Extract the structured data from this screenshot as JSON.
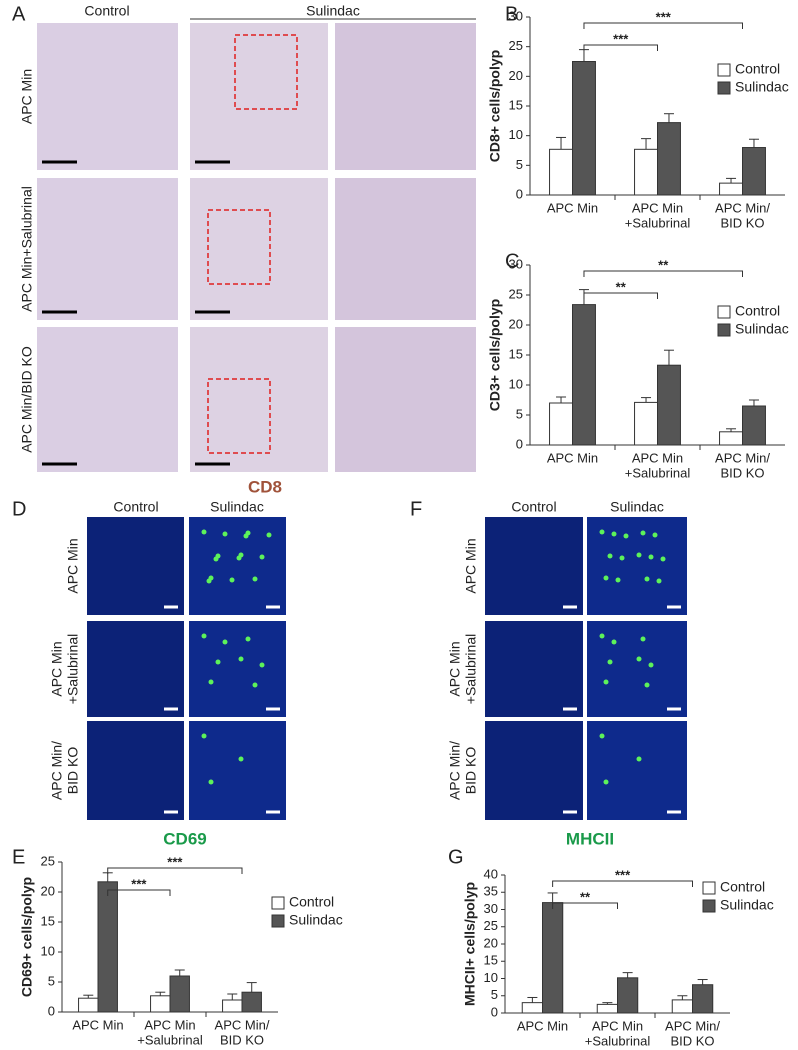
{
  "figure": {
    "A": {
      "label": "A",
      "columns": [
        "Control",
        "Sulindac"
      ],
      "rows": [
        [
          "APC Min"
        ],
        [
          "APC Min+Salubrinal"
        ],
        [
          "APC Min/BID KO"
        ]
      ],
      "stain": "CD8"
    },
    "D": {
      "label": "D",
      "columns": [
        "Control",
        "Sulindac"
      ],
      "rows": [
        [
          "APC Min"
        ],
        [
          "APC Min",
          "+Salubrinal"
        ],
        [
          "APC Min/",
          "BID KO"
        ]
      ],
      "stain": "CD69"
    },
    "F": {
      "label": "F",
      "columns": [
        "Control",
        "Sulindac"
      ],
      "rows": [
        [
          "APC Min"
        ],
        [
          "APC Min",
          "+Salubrinal"
        ],
        [
          "APC Min/",
          "BID KO"
        ]
      ],
      "stain": "MHCII"
    }
  },
  "chart_data": [
    {
      "type": "bar",
      "panel_label": "B",
      "y_label": "CD8+ cells/polyp",
      "categories": [
        [
          "APC Min"
        ],
        [
          "APC Min",
          "+Salubrinal"
        ],
        [
          "APC Min/",
          "BID KO"
        ]
      ],
      "series": [
        {
          "name": "Control",
          "color": "#ffffff",
          "values": [
            7.7,
            7.7,
            2
          ],
          "errors": [
            2,
            1.8,
            0.8
          ]
        },
        {
          "name": "Sulindac",
          "color": "#555555",
          "values": [
            22.5,
            12.2,
            8
          ],
          "errors": [
            2,
            1.5,
            1.4
          ]
        }
      ],
      "ylim": [
        0,
        30
      ],
      "yticks": [
        0,
        5,
        10,
        15,
        20,
        25,
        30
      ],
      "annotations": [
        "***",
        "***"
      ]
    },
    {
      "type": "bar",
      "panel_label": "C",
      "y_label": "CD3+ cells/polyp",
      "categories": [
        [
          "APC Min"
        ],
        [
          "APC Min",
          "+Salubrinal"
        ],
        [
          "APC Min/",
          "BID KO"
        ]
      ],
      "series": [
        {
          "name": "Control",
          "color": "#ffffff",
          "values": [
            7,
            7.1,
            2.2
          ],
          "errors": [
            1,
            0.8,
            0.5
          ]
        },
        {
          "name": "Sulindac",
          "color": "#555555",
          "values": [
            23.4,
            13.3,
            6.5
          ],
          "errors": [
            2.5,
            2.5,
            1
          ]
        }
      ],
      "ylim": [
        0,
        30
      ],
      "yticks": [
        0,
        5,
        10,
        15,
        20,
        25,
        30
      ],
      "annotations": [
        "**",
        "**"
      ]
    },
    {
      "type": "bar",
      "panel_label": "E",
      "y_label": "CD69+ cells/polyp",
      "categories": [
        [
          "APC Min"
        ],
        [
          "APC Min",
          "+Salubrinal"
        ],
        [
          "APC Min/",
          "BID KO"
        ]
      ],
      "series": [
        {
          "name": "Control",
          "color": "#ffffff",
          "values": [
            2.3,
            2.7,
            2
          ],
          "errors": [
            0.5,
            0.6,
            1
          ]
        },
        {
          "name": "Sulindac",
          "color": "#555555",
          "values": [
            21.7,
            6,
            3.3
          ],
          "errors": [
            1.5,
            1,
            1.6
          ]
        }
      ],
      "ylim": [
        0,
        25
      ],
      "yticks": [
        0,
        5,
        10,
        15,
        20,
        25
      ],
      "annotations": [
        "***",
        "***"
      ]
    },
    {
      "type": "bar",
      "panel_label": "G",
      "y_label": "MHCII+ cells/polyp",
      "categories": [
        [
          "APC Min"
        ],
        [
          "APC Min",
          "+Salubrinal"
        ],
        [
          "APC Min/",
          "BID KO"
        ]
      ],
      "series": [
        {
          "name": "Control",
          "color": "#ffffff",
          "values": [
            3,
            2.5,
            3.8
          ],
          "errors": [
            1.5,
            0.5,
            1.2
          ]
        },
        {
          "name": "Sulindac",
          "color": "#555555",
          "values": [
            32,
            10.2,
            8.2
          ],
          "errors": [
            2.8,
            1.5,
            1.5
          ]
        }
      ],
      "ylim": [
        0,
        40
      ],
      "yticks": [
        0,
        5,
        10,
        15,
        20,
        25,
        30,
        35,
        40
      ],
      "annotations": [
        "**",
        "***"
      ]
    }
  ]
}
